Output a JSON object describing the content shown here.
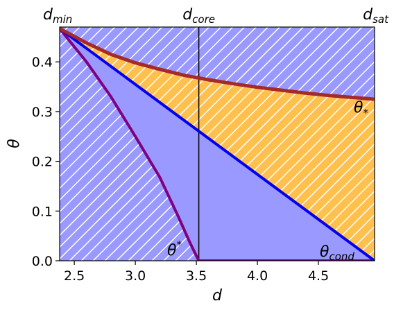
{
  "chart_data": {
    "type": "area",
    "xlabel": "d",
    "ylabel": "θ",
    "xlim": [
      2.38,
      4.96
    ],
    "ylim": [
      0.0,
      0.47
    ],
    "xticks": [
      "2.5",
      "3.0",
      "3.5",
      "4.0",
      "4.5"
    ],
    "yticks": [
      "0.0",
      "0.1",
      "0.2",
      "0.3",
      "0.4"
    ],
    "grid": false,
    "top_labels": [
      {
        "base": "d",
        "sub": "min",
        "x": 2.38
      },
      {
        "base": "d",
        "sub": "core",
        "x": 3.52
      },
      {
        "base": "d",
        "sub": "sat",
        "x": 4.96
      }
    ],
    "vertical_line": {
      "x": 3.52
    },
    "series": [
      {
        "name": "θ_*",
        "label": {
          "base": "θ",
          "sub": "*"
        },
        "color": "#a52a2a",
        "points": [
          [
            2.38,
            0.467
          ],
          [
            2.6,
            0.438
          ],
          [
            2.8,
            0.415
          ],
          [
            3.0,
            0.398
          ],
          [
            3.2,
            0.385
          ],
          [
            3.4,
            0.373
          ],
          [
            3.6,
            0.364
          ],
          [
            3.8,
            0.356
          ],
          [
            4.0,
            0.349
          ],
          [
            4.2,
            0.343
          ],
          [
            4.4,
            0.337
          ],
          [
            4.6,
            0.332
          ],
          [
            4.8,
            0.328
          ],
          [
            4.96,
            0.325
          ]
        ]
      },
      {
        "name": "θ_cond",
        "label": {
          "base": "θ",
          "sub": "cond"
        },
        "color": "#0000ee",
        "points": [
          [
            2.38,
            0.467
          ],
          [
            4.96,
            0.0
          ]
        ]
      },
      {
        "name": "θ^*",
        "label": {
          "base": "θ",
          "sup": "*"
        },
        "color": "#800080",
        "points": [
          [
            2.38,
            0.467
          ],
          [
            2.6,
            0.4
          ],
          [
            2.8,
            0.33
          ],
          [
            3.0,
            0.25
          ],
          [
            3.2,
            0.168
          ],
          [
            3.35,
            0.09
          ],
          [
            3.45,
            0.035
          ],
          [
            3.52,
            0.0
          ],
          [
            4.96,
            0.0
          ]
        ]
      }
    ],
    "fills": {
      "hatched_region_color": "#9999ff",
      "solid_region_color": "#9999ff",
      "orange_region_color": "#ffc04d",
      "hatch_color": "#ffffff"
    }
  }
}
